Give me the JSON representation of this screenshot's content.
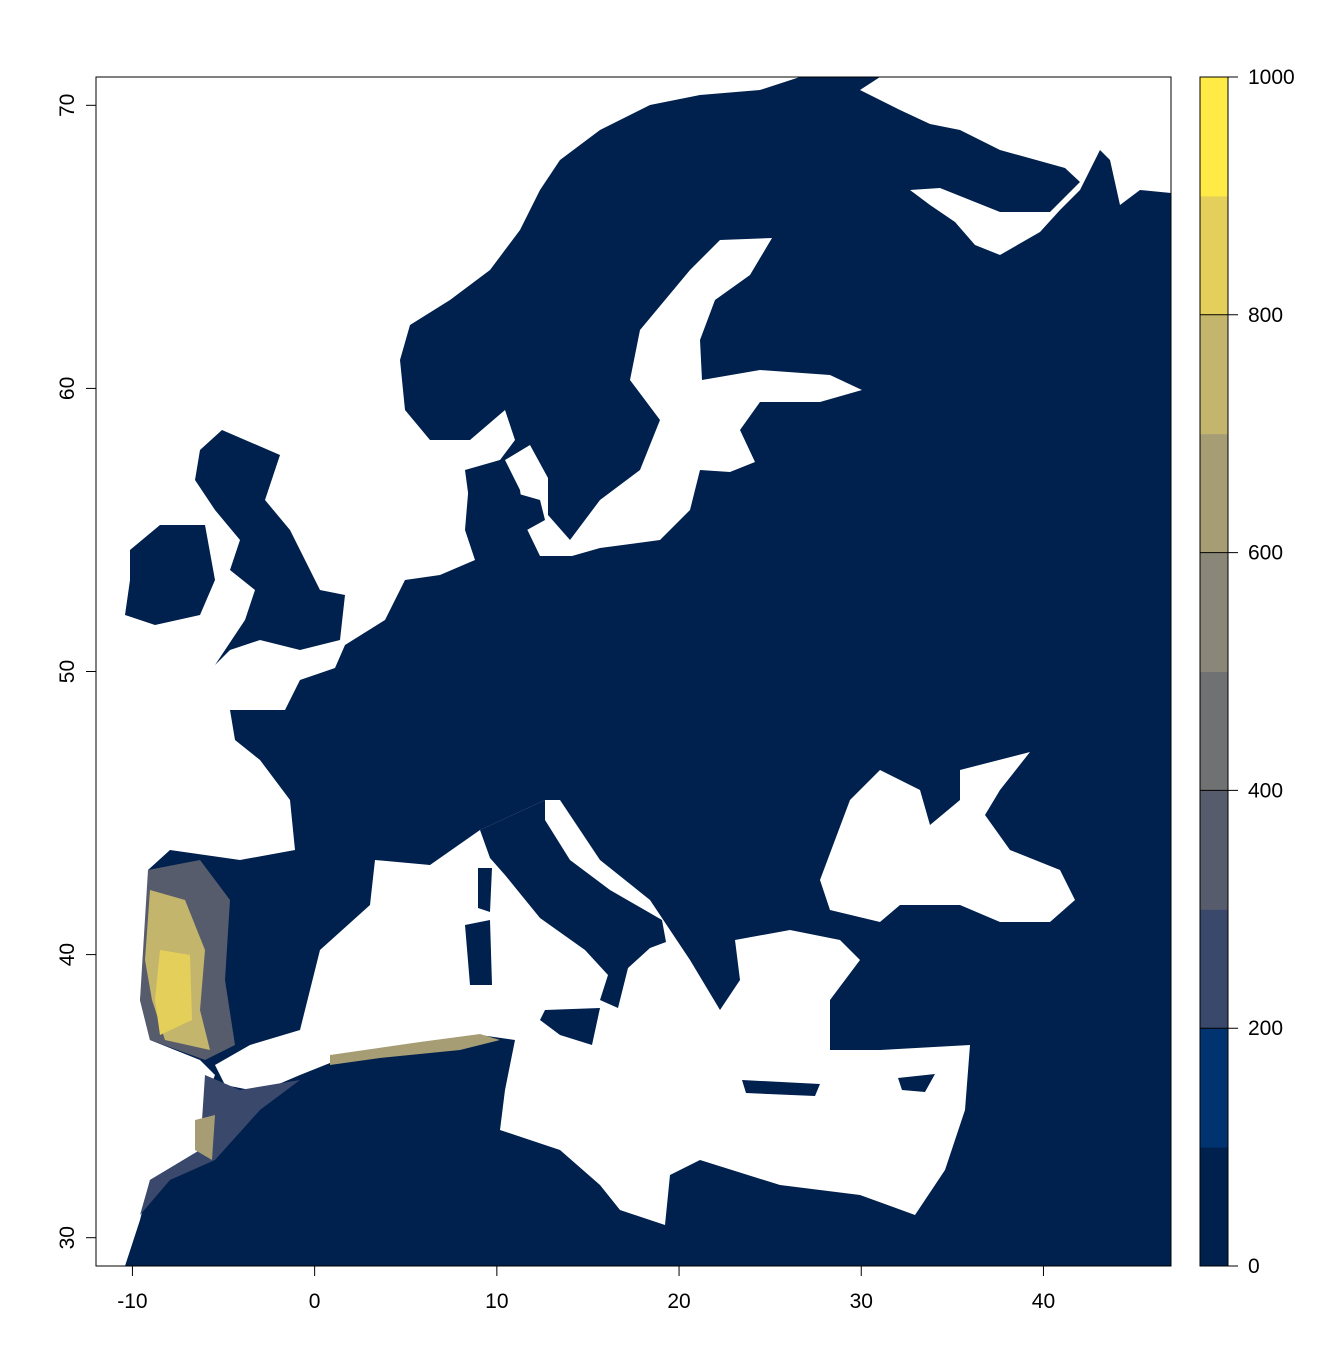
{
  "map": {
    "x_axis": {
      "ticks": [
        "-10",
        "0",
        "10",
        "20",
        "30",
        "40"
      ],
      "values": [
        -10,
        0,
        10,
        20,
        30,
        40
      ],
      "range": [
        -12,
        47
      ]
    },
    "y_axis": {
      "ticks": [
        "30",
        "40",
        "50",
        "60",
        "70"
      ],
      "values": [
        30,
        40,
        50,
        60,
        70
      ],
      "range": [
        29,
        71
      ]
    },
    "land_color": "#00204D",
    "water_color": "#FFFFFF"
  },
  "legend": {
    "tick_labels": [
      "0",
      "200",
      "400",
      "600",
      "800",
      "1000"
    ],
    "tick_values": [
      0,
      200,
      400,
      600,
      800,
      1000
    ],
    "breaks": [
      0,
      100,
      200,
      300,
      400,
      500,
      600,
      700,
      800,
      900,
      1000
    ],
    "colors": [
      "#00204D",
      "#00336F",
      "#39486B",
      "#575C6D",
      "#707173",
      "#8A8779",
      "#A69D75",
      "#C4B56C",
      "#E4CF5B",
      "#FFEA46"
    ]
  }
}
